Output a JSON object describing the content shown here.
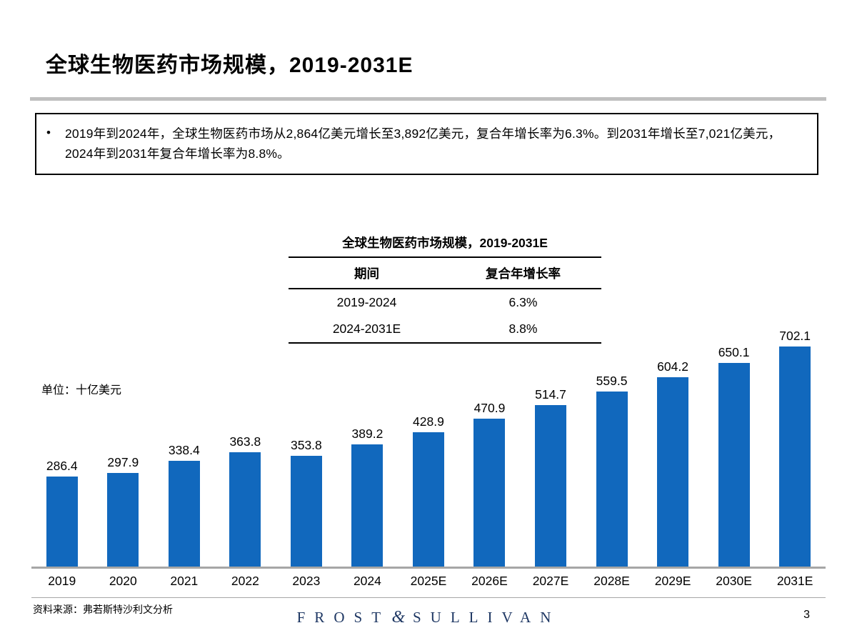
{
  "page": {
    "title": "全球生物医药市场规模，2019-2031E",
    "page_number": "3",
    "source": "资料来源：弗若斯特沙利文分析",
    "logo": {
      "word1": "FROST",
      "amp": "&",
      "word2": "SULLIVAN"
    }
  },
  "callout": {
    "bullet": "•",
    "text": "2019年到2024年，全球生物医药市场从2,864亿美元增长至3,892亿美元，复合年增长率为6.3%。到2031年增长至7,021亿美元，2024年到2031年复合年增长率为8.8%。"
  },
  "cagr_table": {
    "title": "全球生物医药市场规模，2019-2031E",
    "headers": [
      "期间",
      "复合年增长率"
    ],
    "rows": [
      [
        "2019-2024",
        "6.3%"
      ],
      [
        "2024-2031E",
        "8.8%"
      ]
    ]
  },
  "chart_data": {
    "type": "bar",
    "title": "全球生物医药市场规模，2019-2031E",
    "unit_label": "单位：十亿美元",
    "categories": [
      "2019",
      "2020",
      "2021",
      "2022",
      "2023",
      "2024",
      "2025E",
      "2026E",
      "2027E",
      "2028E",
      "2029E",
      "2030E",
      "2031E"
    ],
    "values": [
      286.4,
      297.9,
      338.4,
      363.8,
      353.8,
      389.2,
      428.9,
      470.9,
      514.7,
      559.5,
      604.2,
      650.1,
      702.1
    ],
    "xlabel": "",
    "ylabel": "十亿美元",
    "ylim": [
      0,
      760
    ],
    "grid": false,
    "legend": false,
    "data_labels": true,
    "bar_color": "#1168BD",
    "axis_color": "#A6A6A6"
  }
}
